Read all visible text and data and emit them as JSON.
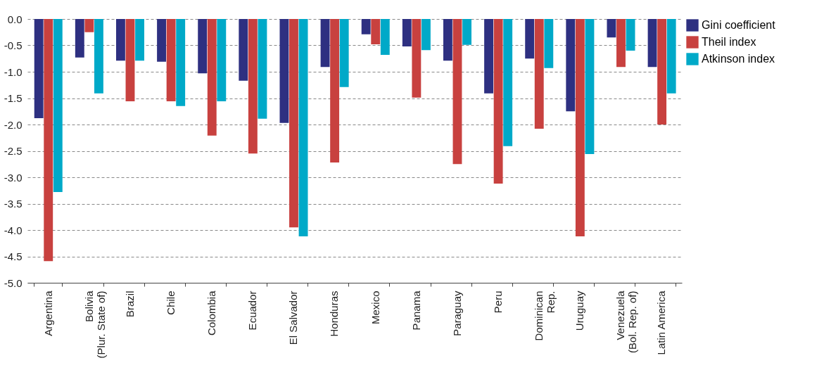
{
  "chart_data": {
    "type": "bar",
    "categories": [
      "Argentina",
      "Bolivia\n(Plur. State of)",
      "Brazil",
      "Chile",
      "Colombia",
      "Ecuador",
      "El Salvador",
      "Honduras",
      "Mexico",
      "Panama",
      "Paraguay",
      "Peru",
      "Dominican\nRep.",
      "Uruguay",
      "Venezuela\n(Bol. Rep. of)",
      "Latin America"
    ],
    "series": [
      {
        "name": "Gini coefficient",
        "color": "#2e3081",
        "values": [
          -1.88,
          -0.73,
          -0.79,
          -0.81,
          -1.03,
          -1.17,
          -1.97,
          -0.91,
          -0.29,
          -0.52,
          -0.79,
          -1.41,
          -0.75,
          -1.75,
          -0.35,
          -0.91
        ]
      },
      {
        "name": "Theil index",
        "color": "#c8413f",
        "values": [
          -4.59,
          -0.25,
          -1.56,
          -1.56,
          -2.21,
          -2.55,
          -3.95,
          -2.72,
          -0.48,
          -1.49,
          -2.75,
          -3.12,
          -2.08,
          -4.12,
          -0.91,
          -2.0
        ]
      },
      {
        "name": "Atkinson index",
        "color": "#00a9c8",
        "values": [
          -3.28,
          -1.41,
          -0.79,
          -1.65,
          -1.56,
          -1.89,
          -4.12,
          -1.29,
          -0.68,
          -0.59,
          -0.49,
          -2.41,
          -0.93,
          -2.56,
          -0.6,
          -1.41
        ]
      }
    ],
    "ylim": [
      -5,
      0
    ],
    "yticks": [
      {
        "value": 0,
        "label": "0.0"
      },
      {
        "value": -0.5,
        "label": "-0.5"
      },
      {
        "value": -1,
        "label": "-1.0"
      },
      {
        "value": -1.5,
        "label": "-1.5"
      },
      {
        "value": -2,
        "label": "-2.0"
      },
      {
        "value": -2.5,
        "label": "-2.5"
      },
      {
        "value": -3,
        "label": "-3.0"
      },
      {
        "value": -3.5,
        "label": "-3.5"
      },
      {
        "value": -4,
        "label": "-4.0"
      },
      {
        "value": -4.5,
        "label": "-4.5"
      },
      {
        "value": -5,
        "label": "-5.0"
      }
    ],
    "grid": "y",
    "legend": "right"
  }
}
